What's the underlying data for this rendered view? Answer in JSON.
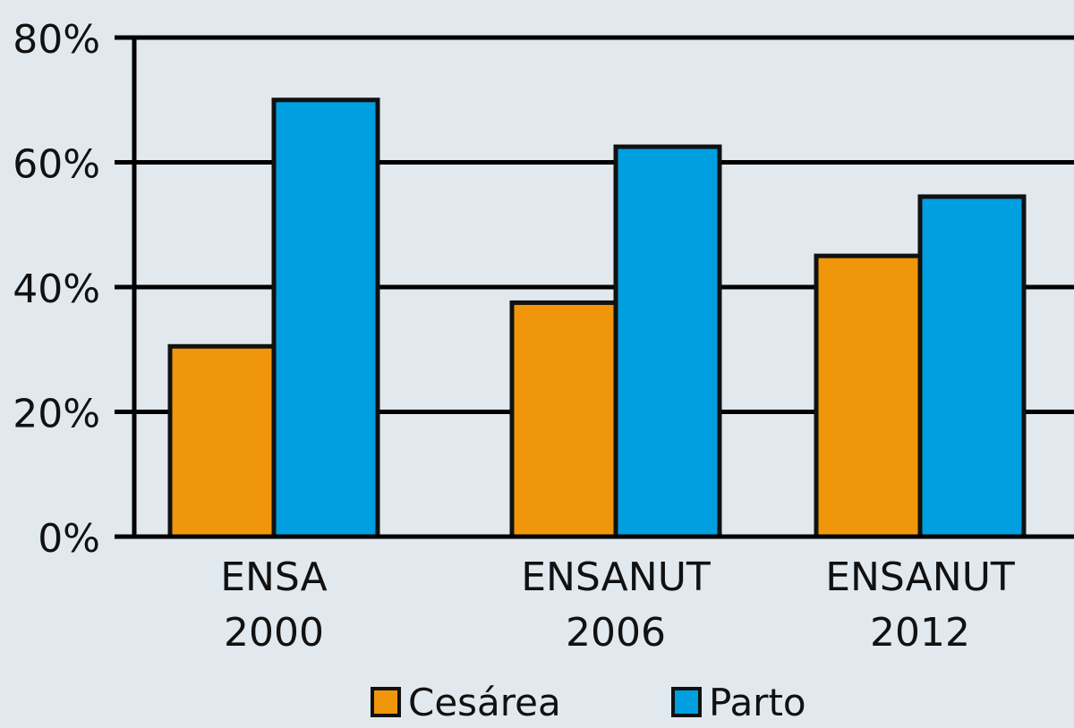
{
  "chart_data": {
    "type": "bar",
    "categories": [
      {
        "line1": "ENSA",
        "line2": "2000"
      },
      {
        "line1": "ENSANUT",
        "line2": "2006"
      },
      {
        "line1": "ENSANUT",
        "line2": "2012"
      }
    ],
    "series": [
      {
        "name": "Cesárea",
        "color": "#f0960a",
        "values": [
          30.5,
          37.5,
          45
        ]
      },
      {
        "name": "Parto",
        "color": "#009fe0",
        "values": [
          70,
          62.5,
          54.5
        ]
      }
    ],
    "y_ticks": [
      {
        "value": 0,
        "label": "0%"
      },
      {
        "value": 20,
        "label": "20%"
      },
      {
        "value": 40,
        "label": "40%"
      },
      {
        "value": 60,
        "label": "60%"
      },
      {
        "value": 80,
        "label": "80%"
      }
    ],
    "ylim": [
      0,
      80
    ],
    "grid": true,
    "legend_position": "bottom"
  }
}
